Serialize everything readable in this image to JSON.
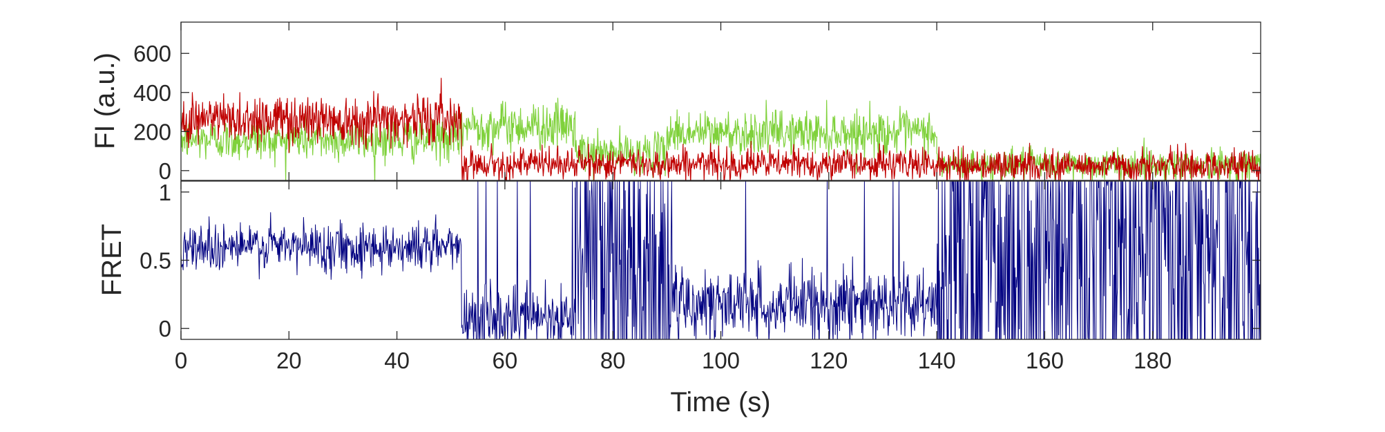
{
  "chart_data": [
    {
      "type": "line",
      "panel": "top",
      "ylabel": "FI (a.u.)",
      "xlim": [
        0,
        200
      ],
      "ylim": [
        -50,
        760
      ],
      "yticks": [
        0,
        200,
        400,
        600
      ],
      "ytick_labels": [
        "0",
        "200",
        "400",
        "600"
      ],
      "grid": false,
      "series": [
        {
          "color": "#7fd13b",
          "segments": [
            {
              "x0": 0,
              "x1": 52,
              "mean": 160,
              "noise": 55
            },
            {
              "x0": 52,
              "x1": 73,
              "mean": 230,
              "noise": 60
            },
            {
              "x0": 73,
              "x1": 90,
              "mean": 90,
              "noise": 50
            },
            {
              "x0": 90,
              "x1": 140,
              "mean": 195,
              "noise": 55
            },
            {
              "x0": 140,
              "x1": 200,
              "mean": 30,
              "noise": 40
            }
          ]
        },
        {
          "color": "#c00000",
          "segments": [
            {
              "x0": 0,
              "x1": 52,
              "mean": 265,
              "noise": 65
            },
            {
              "x0": 52,
              "x1": 140,
              "mean": 35,
              "noise": 40
            },
            {
              "x0": 140,
              "x1": 200,
              "mean": 25,
              "noise": 40
            }
          ]
        }
      ]
    },
    {
      "type": "line",
      "panel": "bottom",
      "ylabel": "FRET",
      "xlabel": "Time (s)",
      "xlim": [
        0,
        200
      ],
      "ylim": [
        -0.08,
        1.08
      ],
      "yticks": [
        0,
        0.5,
        1
      ],
      "ytick_labels": [
        "0",
        "0.5",
        "1"
      ],
      "xticks": [
        0,
        20,
        40,
        60,
        80,
        100,
        120,
        140,
        160,
        180
      ],
      "xtick_labels": [
        "0",
        "20",
        "40",
        "60",
        "80",
        "100",
        "120",
        "140",
        "160",
        "180"
      ],
      "grid": false,
      "series": [
        {
          "color": "#000080",
          "segments": [
            {
              "x0": 0,
              "x1": 52,
              "mean": 0.6,
              "noise": 0.09,
              "spike_prob": 0.0
            },
            {
              "x0": 52,
              "x1": 73,
              "mean": 0.08,
              "noise": 0.12,
              "spike_prob": 0.04
            },
            {
              "x0": 73,
              "x1": 91,
              "mean": 0.5,
              "noise": 0.45,
              "spike_prob": 0.35
            },
            {
              "x0": 91,
              "x1": 140,
              "mean": 0.18,
              "noise": 0.13,
              "spike_prob": 0.02
            },
            {
              "x0": 140,
              "x1": 200,
              "mean": 0.5,
              "noise": 0.5,
              "spike_prob": 0.45
            }
          ]
        }
      ]
    }
  ]
}
